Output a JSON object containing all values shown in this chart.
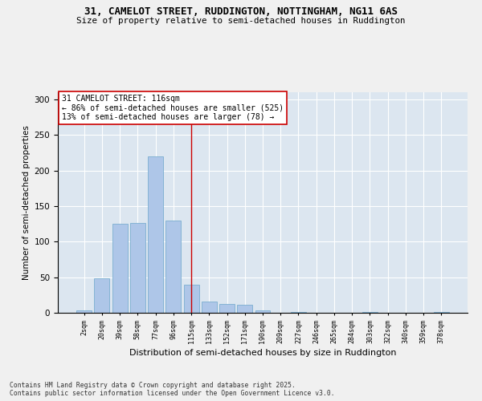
{
  "title_line1": "31, CAMELOT STREET, RUDDINGTON, NOTTINGHAM, NG11 6AS",
  "title_line2": "Size of property relative to semi-detached houses in Ruddington",
  "xlabel": "Distribution of semi-detached houses by size in Ruddington",
  "ylabel": "Number of semi-detached properties",
  "categories": [
    "2sqm",
    "20sqm",
    "39sqm",
    "58sqm",
    "77sqm",
    "96sqm",
    "115sqm",
    "133sqm",
    "152sqm",
    "171sqm",
    "190sqm",
    "209sqm",
    "227sqm",
    "246sqm",
    "265sqm",
    "284sqm",
    "303sqm",
    "322sqm",
    "340sqm",
    "359sqm",
    "378sqm"
  ],
  "values": [
    3,
    48,
    125,
    126,
    220,
    130,
    40,
    16,
    12,
    11,
    3,
    0,
    1,
    0,
    0,
    0,
    1,
    0,
    0,
    0,
    1
  ],
  "bar_color": "#aec6e8",
  "bar_edge_color": "#7aaed0",
  "vline_x": 6,
  "vline_color": "#cc0000",
  "annotation_title": "31 CAMELOT STREET: 116sqm",
  "annotation_line2": "← 86% of semi-detached houses are smaller (525)",
  "annotation_line3": "13% of semi-detached houses are larger (78) →",
  "annotation_box_color": "#ffffff",
  "annotation_box_edge": "#cc0000",
  "ylim": [
    0,
    310
  ],
  "yticks": [
    0,
    50,
    100,
    150,
    200,
    250,
    300
  ],
  "plot_bg_color": "#dce6f0",
  "fig_bg_color": "#f0f0f0",
  "footer_line1": "Contains HM Land Registry data © Crown copyright and database right 2025.",
  "footer_line2": "Contains public sector information licensed under the Open Government Licence v3.0."
}
